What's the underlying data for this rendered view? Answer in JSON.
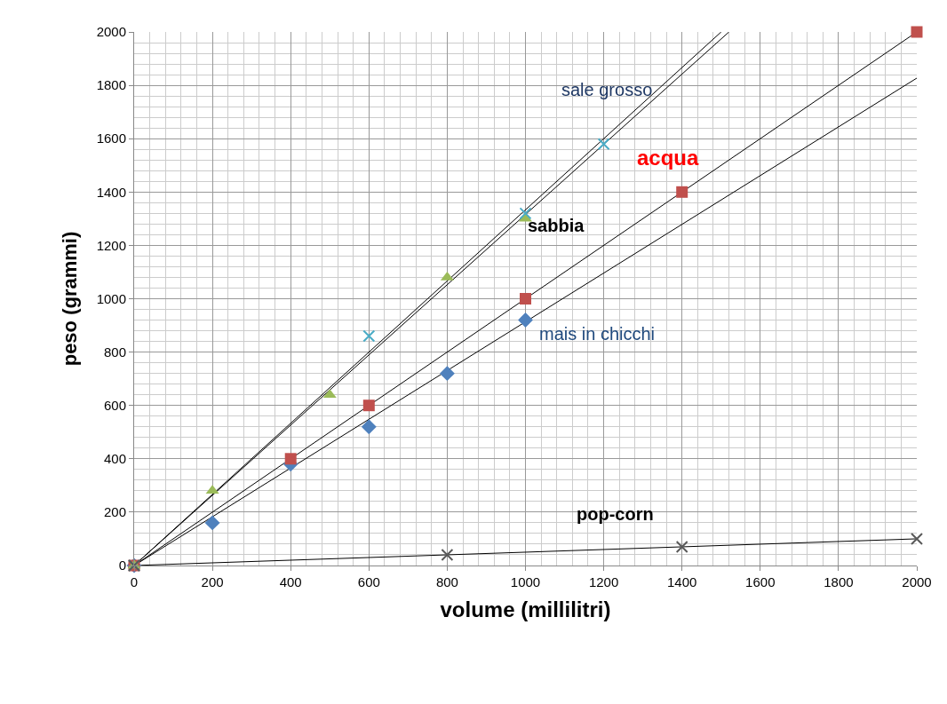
{
  "chart_data": {
    "type": "scatter",
    "xlabel": "volume (millilitri)",
    "ylabel": "peso (grammi)",
    "xlim": [
      0,
      2000
    ],
    "ylim": [
      0,
      2000
    ],
    "xticks": [
      0,
      200,
      400,
      600,
      800,
      1000,
      1200,
      1400,
      1600,
      1800,
      2000
    ],
    "yticks": [
      0,
      200,
      400,
      600,
      800,
      1000,
      1200,
      1400,
      1600,
      1800,
      2000
    ],
    "grid": true,
    "series": [
      {
        "color": "#4f81bd",
        "marker": "diamond",
        "x": [
          0,
          200,
          400,
          600,
          800,
          1000
        ],
        "values": [
          0,
          160,
          380,
          520,
          720,
          920
        ]
      },
      {
        "color": "#c0504d",
        "marker": "square",
        "x": [
          0,
          400,
          600,
          1000,
          1400,
          2000
        ],
        "values": [
          0,
          400,
          600,
          1000,
          1400,
          2000
        ]
      },
      {
        "color": "#9bbb59",
        "marker": "triangle",
        "x": [
          0,
          200,
          500,
          800,
          1000
        ],
        "values": [
          0,
          280,
          640,
          1080,
          1300
        ]
      },
      {
        "color": "#4bacc6",
        "marker": "cross",
        "x": [
          0,
          600,
          1000,
          1200
        ],
        "values": [
          0,
          860,
          1320,
          1580
        ]
      },
      {
        "color": "#595959",
        "marker": "cross",
        "x": [
          0,
          800,
          1400,
          2000
        ],
        "values": [
          0,
          40,
          70,
          100
        ]
      },
      {
        "type": "line",
        "color": "#000000",
        "marker": "none",
        "x": [
          0,
          2000
        ],
        "values": [
          0,
          1827
        ]
      },
      {
        "type": "line",
        "color": "#000000",
        "marker": "none",
        "x": [
          0,
          2000
        ],
        "values": [
          0,
          2000
        ]
      },
      {
        "type": "line",
        "color": "#000000",
        "marker": "none",
        "x": [
          0,
          1500
        ],
        "values": [
          0,
          2000
        ]
      },
      {
        "type": "line",
        "color": "#000000",
        "marker": "none",
        "x": [
          0,
          1520
        ],
        "values": [
          0,
          2000
        ]
      },
      {
        "type": "line",
        "color": "#000000",
        "marker": "none",
        "x": [
          0,
          2000
        ],
        "values": [
          0,
          100
        ]
      }
    ],
    "annotations": [
      "sale grosso",
      "sabbia",
      "acqua",
      "mais in chicchi",
      "pop-corn"
    ]
  }
}
